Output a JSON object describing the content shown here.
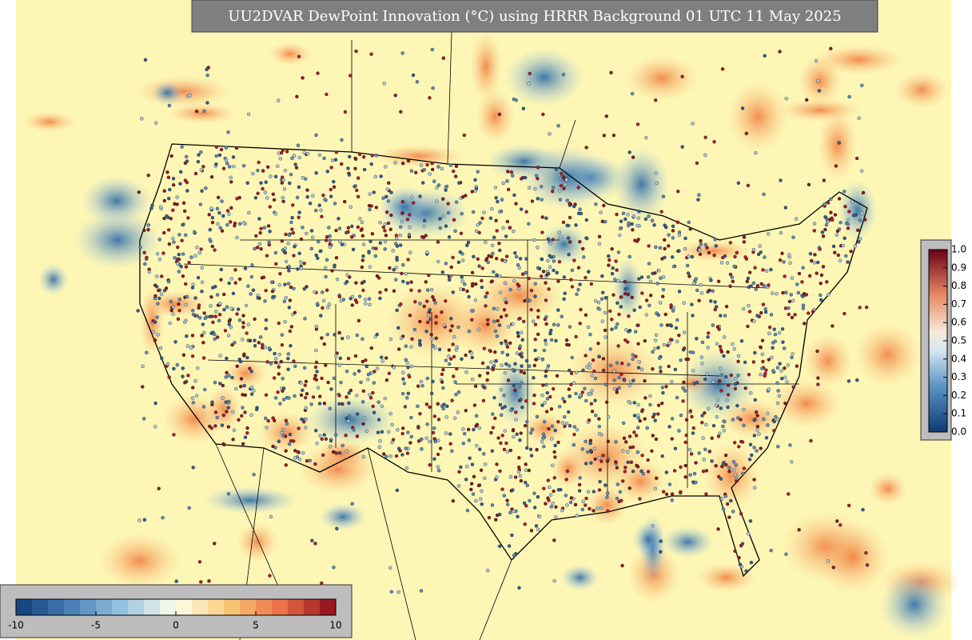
{
  "title": "UU2DVAR DewPoint Innovation (°C) using HRRR Background 01 UTC 11 May 2025",
  "colorbar_bottom": {
    "range": [
      -10,
      10
    ],
    "ticks": [
      -10,
      -5,
      0,
      5,
      10
    ]
  },
  "colorbar_right": {
    "range": [
      0,
      1
    ],
    "ticks": [
      {
        "value": 0,
        "label": "0.0"
      },
      0.1,
      0.2,
      0.3,
      0.4,
      0.5,
      0.6,
      0.7,
      0.8,
      0.9,
      {
        "value": 1,
        "label": "1.0"
      }
    ]
  }
}
